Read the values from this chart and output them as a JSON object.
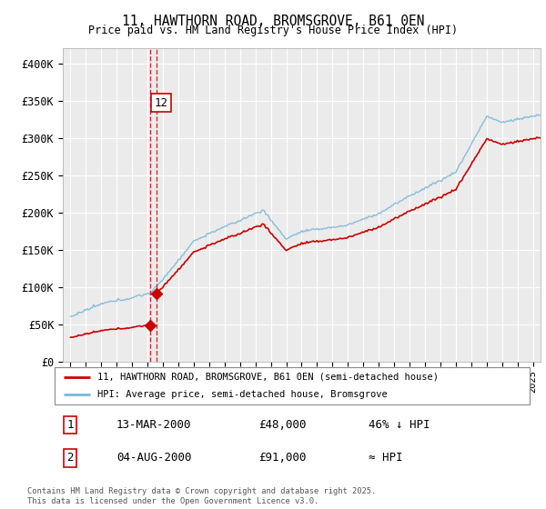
{
  "title_line1": "11, HAWTHORN ROAD, BROMSGROVE, B61 0EN",
  "title_line2": "Price paid vs. HM Land Registry's House Price Index (HPI)",
  "background_color": "#ffffff",
  "plot_bg_color": "#ebebeb",
  "grid_color": "#ffffff",
  "hpi_color": "#7ab8d9",
  "price_color": "#cc0000",
  "dashed_color": "#cc0000",
  "ylim": [
    0,
    420000
  ],
  "yticks": [
    0,
    50000,
    100000,
    150000,
    200000,
    250000,
    300000,
    350000,
    400000
  ],
  "ytick_labels": [
    "£0",
    "£50K",
    "£100K",
    "£150K",
    "£200K",
    "£250K",
    "£300K",
    "£350K",
    "£400K"
  ],
  "legend_label1": "11, HAWTHORN ROAD, BROMSGROVE, B61 0EN (semi-detached house)",
  "legend_label2": "HPI: Average price, semi-detached house, Bromsgrove",
  "table_rows": [
    [
      "1",
      "13-MAR-2000",
      "£48,000",
      "46% ↓ HPI"
    ],
    [
      "2",
      "04-AUG-2000",
      "£91,000",
      "≈ HPI"
    ]
  ],
  "copyright_text": "Contains HM Land Registry data © Crown copyright and database right 2025.\nThis data is licensed under the Open Government Licence v3.0.",
  "annotation_label": "12",
  "sale1_year": 2000.19,
  "sale1_price": 48000,
  "sale2_year": 2000.58,
  "sale2_price": 91000,
  "xlim_start": 1994.5,
  "xlim_end": 2025.5
}
